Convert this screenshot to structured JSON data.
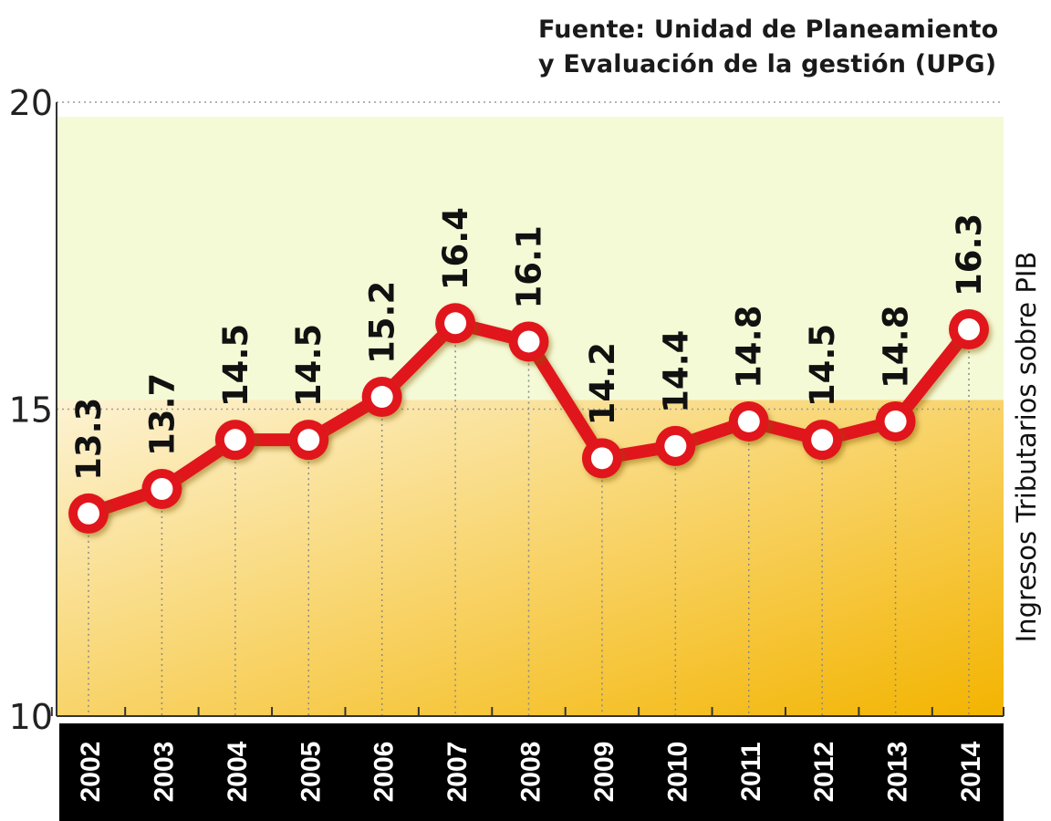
{
  "source": {
    "line1": "Fuente: Unidad de Planeamiento",
    "line2": "y Evaluación de la gestión (UPG)"
  },
  "colors": {
    "line": "#e0141b",
    "marker_fill": "#ffffff",
    "upper_band": "#f5fad6",
    "gradient_light": "#fdf3d4",
    "gradient_dark": "#f3b400",
    "axis_band": "#000000"
  },
  "chart_data": {
    "type": "line",
    "title": "",
    "xlabel": "",
    "ylabel": "Ingresos Tributarios sobre PIB",
    "ylim": [
      10,
      20
    ],
    "yticks": [
      10,
      15,
      20
    ],
    "categories": [
      "2002",
      "2003",
      "2004",
      "2005",
      "2006",
      "2007",
      "2008",
      "2009",
      "2010",
      "2011",
      "2012",
      "2013",
      "2014"
    ],
    "series": [
      {
        "values": [
          13.3,
          13.7,
          14.5,
          14.5,
          15.2,
          16.4,
          16.1,
          14.2,
          14.4,
          14.8,
          14.5,
          14.8,
          16.3
        ],
        "labels": [
          "13.3",
          "13.7",
          "14.5",
          "14.5",
          "15.2",
          "16.4",
          "16.1",
          "14.2",
          "14.4",
          "14.8",
          "14.5",
          "14.8",
          "16.3"
        ]
      }
    ],
    "grid": true,
    "legend": "none"
  }
}
